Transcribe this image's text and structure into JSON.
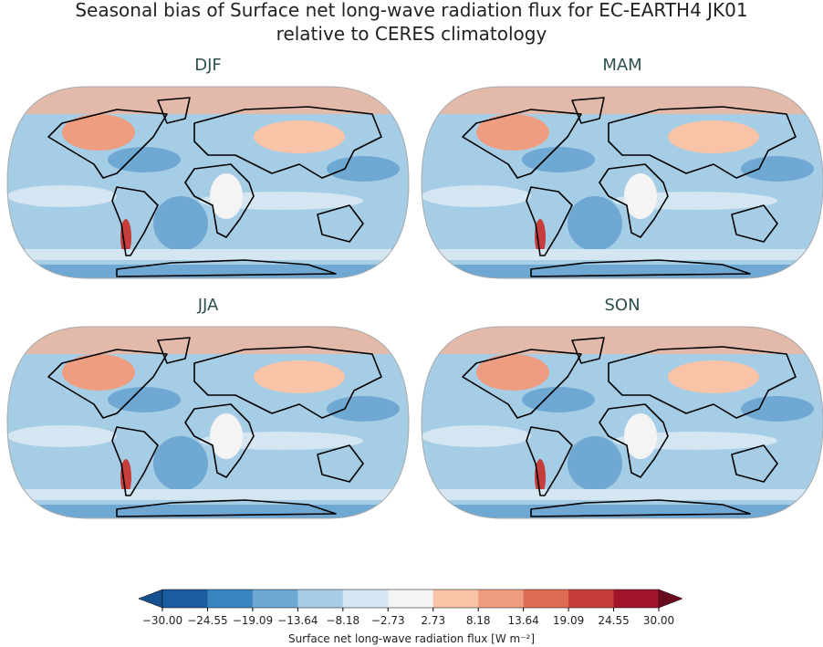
{
  "title": [
    "Seasonal bias of Surface net long-wave radiation flux for EC-EARTH4 JK01",
    "relative to CERES climatology"
  ],
  "panels": [
    {
      "label": "DJF"
    },
    {
      "label": "MAM"
    },
    {
      "label": "JJA"
    },
    {
      "label": "SON"
    }
  ],
  "colorbar": {
    "ticks": [
      "−30.00",
      "−24.55",
      "−19.09",
      "−13.64",
      "−8.18",
      "−2.73",
      "2.73",
      "8.18",
      "13.64",
      "19.09",
      "24.55",
      "30.00"
    ],
    "colors": [
      "#1c5ca0",
      "#3a85c0",
      "#6ea8d3",
      "#a6cde6",
      "#d3e6f2",
      "#f4f4f4",
      "#f8c3a7",
      "#ef9d80",
      "#df6c55",
      "#c63d3b",
      "#a1162a"
    ],
    "under_color": "#15508f",
    "over_color": "#6a0a1e",
    "label": "Surface net long-wave radiation flux [W m⁻²]"
  }
}
